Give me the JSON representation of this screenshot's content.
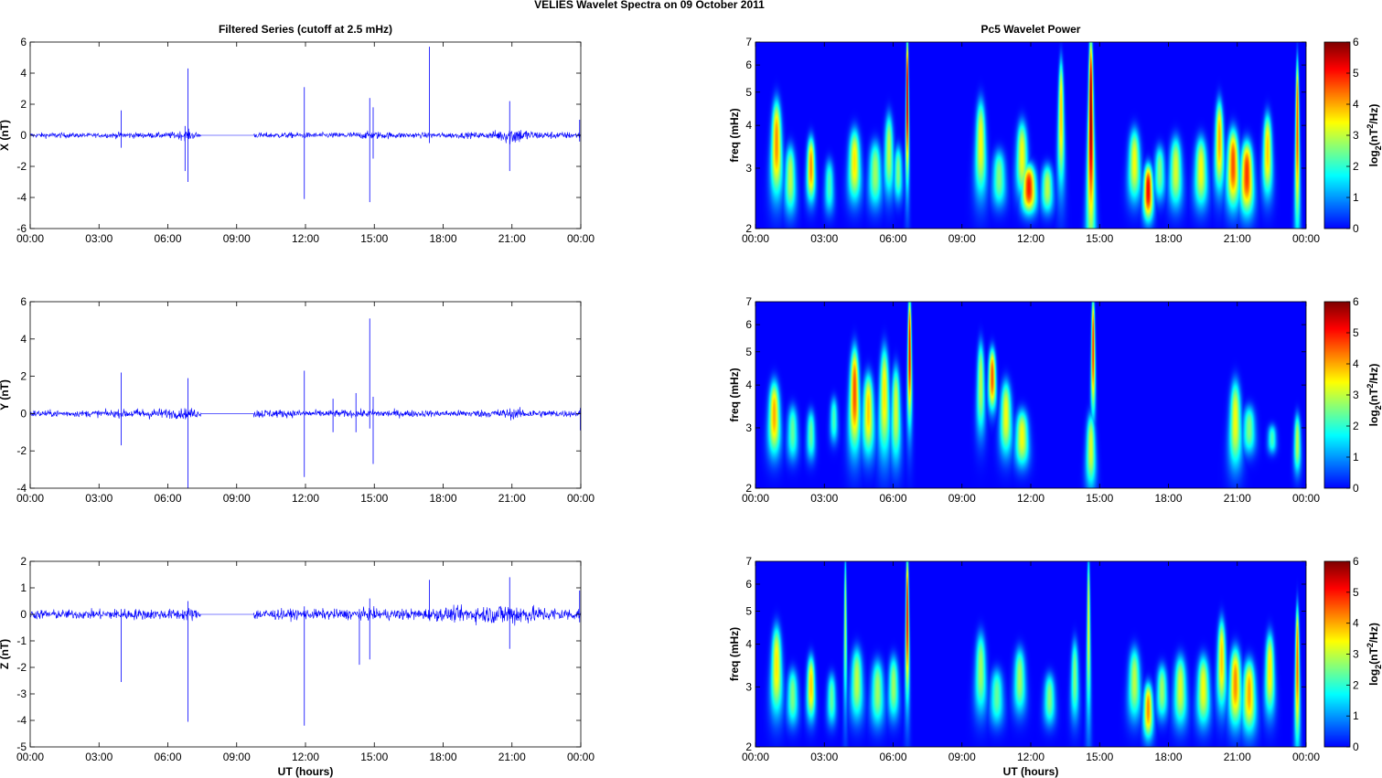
{
  "figure": {
    "title": "VELIES Wavelet Spectra on 09 October   2011"
  },
  "chart_data": [
    {
      "type": "line",
      "id": "ts-x",
      "title": "Filtered Series (cutoff at 2.5 mHz)",
      "xlabel": "",
      "ylabel": "X (nT)",
      "x_unit": "UT hours",
      "xlim": [
        0,
        24
      ],
      "ylim": [
        -6,
        6
      ],
      "x_ticks": [
        "00:00",
        "03:00",
        "06:00",
        "09:00",
        "12:00",
        "15:00",
        "18:00",
        "21:00",
        "00:00"
      ],
      "y_ticks": [
        "-6",
        "-4",
        "-2",
        "0",
        "2",
        "4",
        "6"
      ],
      "color": "#0000ff",
      "data_gap": [
        7.45,
        9.75
      ],
      "envelope": [
        [
          0,
          0.18
        ],
        [
          1,
          0.22
        ],
        [
          2,
          0.18
        ],
        [
          3,
          0.16
        ],
        [
          4,
          0.25
        ],
        [
          5,
          0.2
        ],
        [
          6,
          0.22
        ],
        [
          6.9,
          0.4
        ],
        [
          7.45,
          0.15
        ],
        [
          9.75,
          0.2
        ],
        [
          11,
          0.22
        ],
        [
          13,
          0.2
        ],
        [
          15,
          0.3
        ],
        [
          16,
          0.22
        ],
        [
          18,
          0.2
        ],
        [
          20,
          0.25
        ],
        [
          20.6,
          0.5
        ],
        [
          21,
          0.8
        ],
        [
          21.5,
          0.5
        ],
        [
          22,
          0.3
        ],
        [
          24,
          0.25
        ]
      ],
      "spikes": [
        [
          3.97,
          1.6,
          -0.8
        ],
        [
          6.88,
          4.3,
          -3.0
        ],
        [
          6.75,
          0.6,
          -2.3
        ],
        [
          11.95,
          3.1,
          -4.1
        ],
        [
          14.8,
          2.4,
          -4.3
        ],
        [
          14.95,
          1.8,
          -1.5
        ],
        [
          17.4,
          5.7,
          -0.5
        ],
        [
          20.9,
          2.2,
          -2.3
        ],
        [
          23.95,
          1.0,
          -0.4
        ]
      ]
    },
    {
      "type": "line",
      "id": "ts-y",
      "xlabel": "",
      "ylabel": "Y (nT)",
      "x_unit": "UT hours",
      "xlim": [
        0,
        24
      ],
      "ylim": [
        -4,
        6
      ],
      "x_ticks": [
        "00:00",
        "03:00",
        "06:00",
        "09:00",
        "12:00",
        "15:00",
        "18:00",
        "21:00",
        "00:00"
      ],
      "y_ticks": [
        "-4",
        "-2",
        "0",
        "2",
        "4",
        "6"
      ],
      "color": "#0000ff",
      "data_gap": [
        7.45,
        9.75
      ],
      "envelope": [
        [
          0,
          0.22
        ],
        [
          2,
          0.2
        ],
        [
          4,
          0.25
        ],
        [
          5,
          0.35
        ],
        [
          6,
          0.3
        ],
        [
          7,
          0.35
        ],
        [
          7.45,
          0.2
        ],
        [
          9.75,
          0.3
        ],
        [
          11,
          0.25
        ],
        [
          13,
          0.22
        ],
        [
          15,
          0.25
        ],
        [
          18,
          0.2
        ],
        [
          20,
          0.25
        ],
        [
          21,
          0.35
        ],
        [
          22,
          0.25
        ],
        [
          24,
          0.2
        ]
      ],
      "spikes": [
        [
          3.97,
          2.2,
          -1.7
        ],
        [
          6.88,
          1.9,
          -4.0
        ],
        [
          11.95,
          2.3,
          -3.4
        ],
        [
          13.2,
          0.8,
          -1.0
        ],
        [
          14.2,
          1.1,
          -1.0
        ],
        [
          14.8,
          5.1,
          -0.8
        ],
        [
          14.95,
          0.9,
          -2.7
        ],
        [
          23.98,
          0.3,
          -0.9
        ]
      ]
    },
    {
      "type": "line",
      "id": "ts-z",
      "xlabel": "UT hours",
      "ylabel": "Z (nT)",
      "x_unit": "UT hours",
      "xlim": [
        0,
        24
      ],
      "ylim": [
        -5,
        2
      ],
      "x_ticks": [
        "00:00",
        "03:00",
        "06:00",
        "09:00",
        "12:00",
        "15:00",
        "18:00",
        "21:00",
        "00:00"
      ],
      "y_ticks": [
        "-5",
        "-4",
        "-3",
        "-2",
        "-1",
        "0",
        "1",
        "2"
      ],
      "color": "#0000ff",
      "data_gap": [
        7.45,
        9.75
      ],
      "envelope": [
        [
          0,
          0.22
        ],
        [
          2,
          0.2
        ],
        [
          4,
          0.25
        ],
        [
          6,
          0.22
        ],
        [
          7,
          0.3
        ],
        [
          7.45,
          0.15
        ],
        [
          9.75,
          0.25
        ],
        [
          12,
          0.22
        ],
        [
          15,
          0.25
        ],
        [
          17,
          0.25
        ],
        [
          18,
          0.3
        ],
        [
          20,
          0.4
        ],
        [
          21,
          0.55
        ],
        [
          22,
          0.35
        ],
        [
          24,
          0.25
        ]
      ],
      "spikes": [
        [
          3.97,
          0.2,
          -2.55
        ],
        [
          6.88,
          0.5,
          -4.05
        ],
        [
          11.95,
          0.3,
          -4.2
        ],
        [
          14.35,
          0.2,
          -1.9
        ],
        [
          14.8,
          0.6,
          -1.7
        ],
        [
          17.4,
          1.3,
          -0.2
        ],
        [
          20.9,
          1.4,
          -1.3
        ],
        [
          23.95,
          0.9,
          -0.3
        ]
      ]
    },
    {
      "type": "heatmap",
      "id": "wp-x",
      "title": "Pc5 Wavelet Power",
      "xlabel": "",
      "ylabel": "freq (mHz)",
      "x_unit": "UT hours",
      "xlim": [
        0,
        24
      ],
      "ylim": [
        2,
        7
      ],
      "y_scale": "log",
      "x_ticks": [
        "00:00",
        "03:00",
        "06:00",
        "09:00",
        "12:00",
        "15:00",
        "18:00",
        "21:00",
        "00:00"
      ],
      "y_ticks": [
        "2",
        "3",
        "4",
        "5",
        "6",
        "7"
      ],
      "colorbar": {
        "label": "log2(nT^2/Hz)",
        "ticks": [
          "0",
          "1",
          "2",
          "3",
          "4",
          "5",
          "6"
        ],
        "range": [
          0,
          6
        ],
        "colormap": "jet"
      },
      "bursts": [
        [
          0.9,
          2.6,
          4.6,
          0.3,
          4.2
        ],
        [
          1.5,
          2.3,
          3.4,
          0.25,
          3.0
        ],
        [
          2.4,
          2.5,
          3.6,
          0.2,
          4.2
        ],
        [
          3.2,
          2.3,
          3.1,
          0.2,
          2.2
        ],
        [
          4.3,
          2.5,
          3.8,
          0.3,
          3.6
        ],
        [
          5.2,
          2.4,
          3.5,
          0.3,
          2.8
        ],
        [
          5.8,
          2.6,
          4.2,
          0.25,
          3.0
        ],
        [
          6.6,
          3.0,
          7.0,
          0.1,
          6.0
        ],
        [
          6.2,
          2.5,
          3.4,
          0.2,
          2.6
        ],
        [
          9.8,
          2.6,
          4.6,
          0.3,
          3.4
        ],
        [
          10.6,
          2.4,
          3.3,
          0.3,
          2.6
        ],
        [
          11.6,
          2.6,
          4.0,
          0.3,
          3.4
        ],
        [
          11.9,
          2.3,
          3.0,
          0.3,
          5.0
        ],
        [
          12.7,
          2.3,
          3.0,
          0.25,
          3.0
        ],
        [
          13.3,
          2.8,
          6.0,
          0.2,
          3.8
        ],
        [
          14.6,
          2.0,
          7.0,
          0.18,
          6.0
        ],
        [
          16.5,
          2.5,
          3.8,
          0.3,
          3.4
        ],
        [
          17.1,
          2.2,
          3.0,
          0.2,
          5.2
        ],
        [
          17.6,
          2.5,
          3.4,
          0.25,
          2.6
        ],
        [
          18.3,
          2.4,
          3.6,
          0.3,
          3.2
        ],
        [
          19.4,
          2.4,
          3.6,
          0.3,
          3.4
        ],
        [
          20.2,
          2.7,
          4.6,
          0.25,
          4.0
        ],
        [
          20.8,
          2.4,
          3.8,
          0.3,
          4.6
        ],
        [
          21.4,
          2.3,
          3.5,
          0.3,
          4.8
        ],
        [
          22.3,
          2.6,
          4.2,
          0.25,
          3.8
        ],
        [
          23.6,
          2.2,
          6.0,
          0.12,
          4.8
        ]
      ]
    },
    {
      "type": "heatmap",
      "id": "wp-y",
      "xlabel": "",
      "ylabel": "freq (mHz)",
      "x_unit": "UT hours",
      "xlim": [
        0,
        24
      ],
      "ylim": [
        2,
        7
      ],
      "y_scale": "log",
      "x_ticks": [
        "00:00",
        "03:00",
        "06:00",
        "09:00",
        "12:00",
        "15:00",
        "18:00",
        "21:00",
        "00:00"
      ],
      "y_ticks": [
        "2",
        "3",
        "4",
        "5",
        "6",
        "7"
      ],
      "colorbar": {
        "label": "log2(nT^2/Hz)",
        "ticks": [
          "0",
          "1",
          "2",
          "3",
          "4",
          "5",
          "6"
        ],
        "range": [
          0,
          6
        ],
        "colormap": "jet"
      },
      "bursts": [
        [
          0.8,
          2.6,
          4.0,
          0.3,
          4.0
        ],
        [
          1.6,
          2.5,
          3.4,
          0.25,
          2.4
        ],
        [
          2.4,
          2.5,
          3.3,
          0.2,
          2.4
        ],
        [
          3.4,
          2.8,
          3.6,
          0.2,
          2.2
        ],
        [
          4.3,
          2.7,
          5.0,
          0.3,
          4.6
        ],
        [
          4.9,
          2.6,
          4.2,
          0.3,
          3.8
        ],
        [
          5.6,
          2.6,
          5.0,
          0.3,
          3.6
        ],
        [
          6.7,
          3.3,
          7.0,
          0.15,
          5.4
        ],
        [
          6.1,
          2.5,
          4.4,
          0.25,
          3.2
        ],
        [
          9.8,
          3.0,
          5.2,
          0.25,
          3.0
        ],
        [
          10.3,
          3.5,
          5.0,
          0.25,
          4.6
        ],
        [
          10.9,
          2.6,
          4.0,
          0.3,
          3.4
        ],
        [
          11.6,
          2.4,
          3.3,
          0.3,
          3.4
        ],
        [
          14.7,
          3.5,
          7.0,
          0.15,
          5.0
        ],
        [
          14.6,
          2.1,
          3.2,
          0.2,
          3.2
        ],
        [
          20.9,
          2.4,
          4.0,
          0.3,
          3.4
        ],
        [
          21.5,
          2.6,
          3.4,
          0.3,
          2.6
        ],
        [
          22.5,
          2.6,
          3.0,
          0.2,
          2.2
        ],
        [
          23.6,
          2.3,
          3.2,
          0.15,
          3.0
        ]
      ]
    },
    {
      "type": "heatmap",
      "id": "wp-z",
      "xlabel": "UT hours",
      "ylabel": "freq (mHz)",
      "x_unit": "UT hours",
      "xlim": [
        0,
        24
      ],
      "ylim": [
        2,
        7
      ],
      "y_scale": "log",
      "x_ticks": [
        "00:00",
        "03:00",
        "06:00",
        "09:00",
        "12:00",
        "15:00",
        "18:00",
        "21:00",
        "00:00"
      ],
      "y_ticks": [
        "2",
        "3",
        "4",
        "5",
        "6",
        "7"
      ],
      "colorbar": {
        "label": "log2(nT^2/Hz)",
        "ticks": [
          "0",
          "1",
          "2",
          "3",
          "4",
          "5",
          "6"
        ],
        "range": [
          0,
          6
        ],
        "colormap": "jet"
      },
      "bursts": [
        [
          0.9,
          2.6,
          4.4,
          0.3,
          3.6
        ],
        [
          1.6,
          2.4,
          3.3,
          0.25,
          2.6
        ],
        [
          2.4,
          2.5,
          3.6,
          0.2,
          3.8
        ],
        [
          3.3,
          2.4,
          3.2,
          0.2,
          2.4
        ],
        [
          3.9,
          2.8,
          7.0,
          0.1,
          3.0
        ],
        [
          4.4,
          2.5,
          3.8,
          0.3,
          3.0
        ],
        [
          5.3,
          2.4,
          3.5,
          0.3,
          2.8
        ],
        [
          6.6,
          3.0,
          7.0,
          0.12,
          5.4
        ],
        [
          6.0,
          2.5,
          3.6,
          0.25,
          2.8
        ],
        [
          9.8,
          2.6,
          4.2,
          0.3,
          2.8
        ],
        [
          10.5,
          2.4,
          3.3,
          0.3,
          2.4
        ],
        [
          11.5,
          2.6,
          3.8,
          0.3,
          2.8
        ],
        [
          12.8,
          2.4,
          3.2,
          0.25,
          2.6
        ],
        [
          13.9,
          2.5,
          4.0,
          0.2,
          2.6
        ],
        [
          14.5,
          2.6,
          7.0,
          0.12,
          3.4
        ],
        [
          16.5,
          2.5,
          3.8,
          0.3,
          3.0
        ],
        [
          17.1,
          2.2,
          3.0,
          0.2,
          4.2
        ],
        [
          17.7,
          2.5,
          3.4,
          0.25,
          2.8
        ],
        [
          18.5,
          2.4,
          3.6,
          0.3,
          3.2
        ],
        [
          19.5,
          2.4,
          3.6,
          0.3,
          3.4
        ],
        [
          20.3,
          2.7,
          4.6,
          0.25,
          3.8
        ],
        [
          20.9,
          2.4,
          3.8,
          0.3,
          4.2
        ],
        [
          21.5,
          2.3,
          3.5,
          0.3,
          4.0
        ],
        [
          22.4,
          2.6,
          4.2,
          0.25,
          3.6
        ],
        [
          23.6,
          2.2,
          5.0,
          0.12,
          4.6
        ]
      ]
    }
  ]
}
